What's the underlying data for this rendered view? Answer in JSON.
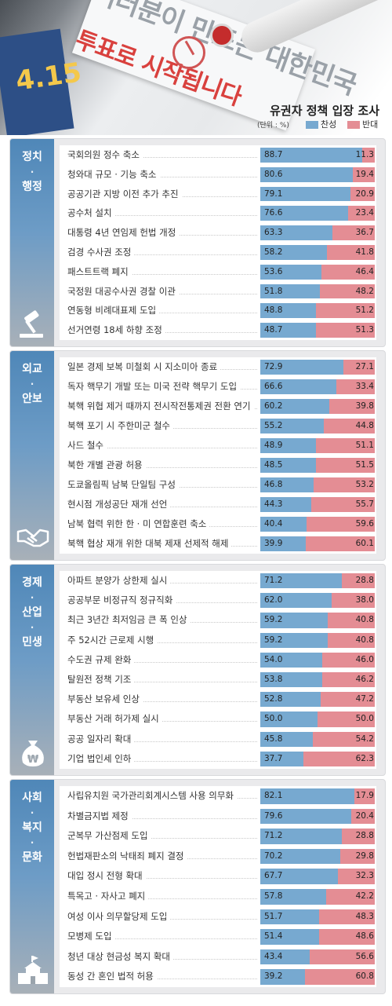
{
  "header": {
    "ballot_text_1": "여러분이 만드는 대한민국",
    "ballot_text_2": "투표로 시작됩니다",
    "poster_date": "4.15"
  },
  "chart_data": {
    "type": "bar",
    "stacked": true,
    "horizontal": true,
    "title": "유권자 정책 입장 조사",
    "unit": "(단위 : %)",
    "xlim": [
      0,
      100
    ],
    "legend": [
      {
        "name": "찬성",
        "color": "#77a9d0"
      },
      {
        "name": "반대",
        "color": "#e48d94"
      }
    ],
    "groups": [
      {
        "label_lines": [
          "정치",
          "·",
          "행정"
        ],
        "color": "#4f87b8",
        "icon": "gavel-icon",
        "items": [
          {
            "label": "국회의원 정수 축소",
            "for": 88.7,
            "against": 11.3
          },
          {
            "label": "청와대 규모 · 기능 축소",
            "for": 80.6,
            "against": 19.4
          },
          {
            "label": "공공기관 지방 이전 추가 추진",
            "for": 79.1,
            "against": 20.9
          },
          {
            "label": "공수처 설치",
            "for": 76.6,
            "against": 23.4
          },
          {
            "label": "대통령 4년 연임제 헌법 개정",
            "for": 63.3,
            "against": 36.7
          },
          {
            "label": "검경 수사권 조정",
            "for": 58.2,
            "against": 41.8
          },
          {
            "label": "패스트트랙 폐지",
            "for": 53.6,
            "against": 46.4
          },
          {
            "label": "국정원 대공수사권 경찰 이관",
            "for": 51.8,
            "against": 48.2
          },
          {
            "label": "연동형 비례대표제 도입",
            "for": 48.8,
            "against": 51.2
          },
          {
            "label": "선거연령 18세 하향 조정",
            "for": 48.7,
            "against": 51.3
          }
        ]
      },
      {
        "label_lines": [
          "외교",
          "·",
          "안보"
        ],
        "color": "#4f87b8",
        "icon": "handshake-icon",
        "items": [
          {
            "label": "일본 경제 보복 미철회 시 지소미아 종료",
            "for": 72.9,
            "against": 27.1
          },
          {
            "label": "독자 핵무기 개발 또는 미국 전략 핵무기 도입",
            "for": 66.6,
            "against": 33.4
          },
          {
            "label": "북핵 위협 제거 때까지 전시작전통제권 전환 연기",
            "for": 60.2,
            "against": 39.8
          },
          {
            "label": "북핵 포기 시 주한미군 철수",
            "for": 55.2,
            "against": 44.8
          },
          {
            "label": "사드 철수",
            "for": 48.9,
            "against": 51.1
          },
          {
            "label": "북한 개별 관광 허용",
            "for": 48.5,
            "against": 51.5
          },
          {
            "label": "도쿄올림픽 남북 단일팀 구성",
            "for": 46.8,
            "against": 53.2
          },
          {
            "label": "현시점 개성공단 재개 선언",
            "for": 44.3,
            "against": 55.7
          },
          {
            "label": "남북 협력 위한 한 · 미 연합훈련 축소",
            "for": 40.4,
            "against": 59.6
          },
          {
            "label": "북핵 협상 재개 위한 대북 제재 선제적 해제",
            "for": 39.9,
            "against": 60.1
          }
        ]
      },
      {
        "label_lines": [
          "경제",
          "·",
          "산업",
          "·",
          "민생"
        ],
        "color": "#4f87b8",
        "icon": "money-bag-icon",
        "items": [
          {
            "label": "아파트 분양가 상한제 실시",
            "for": 71.2,
            "against": 28.8
          },
          {
            "label": "공공부문 비정규직 정규직화",
            "for": 62.0,
            "against": 38.0
          },
          {
            "label": "최근 3년간 최저임금 큰 폭 인상",
            "for": 59.2,
            "against": 40.8
          },
          {
            "label": "주 52시간 근로제 시행",
            "for": 59.2,
            "against": 40.8
          },
          {
            "label": "수도권 규제 완화",
            "for": 54.0,
            "against": 46.0
          },
          {
            "label": "탈원전 정책 기조",
            "for": 53.8,
            "against": 46.2
          },
          {
            "label": "부동산 보유세 인상",
            "for": 52.8,
            "against": 47.2
          },
          {
            "label": "부동산 거래 허가제 실시",
            "for": 50.0,
            "against": 50.0
          },
          {
            "label": "공공 일자리 확대",
            "for": 45.8,
            "against": 54.2
          },
          {
            "label": "기업 법인세 인하",
            "for": 37.7,
            "against": 62.3
          }
        ]
      },
      {
        "label_lines": [
          "사회",
          "·",
          "복지",
          "·",
          "문화"
        ],
        "color": "#4f87b8",
        "icon": "school-building-icon",
        "items": [
          {
            "label": "사립유치원 국가관리회계시스템 사용 의무화",
            "for": 82.1,
            "against": 17.9
          },
          {
            "label": "차별금지법 제정",
            "for": 79.6,
            "against": 20.4
          },
          {
            "label": "군복무 가산점제 도입",
            "for": 71.2,
            "against": 28.8
          },
          {
            "label": "헌법재판소의 낙태죄 폐지 결정",
            "for": 70.2,
            "against": 29.8
          },
          {
            "label": "대입 정시 전형 확대",
            "for": 67.7,
            "against": 32.3
          },
          {
            "label": "특목고 · 자사고 폐지",
            "for": 57.8,
            "against": 42.2
          },
          {
            "label": "여성 이사 의무할당제 도입",
            "for": 51.7,
            "against": 48.3
          },
          {
            "label": "모병제 도입",
            "for": 51.4,
            "against": 48.6
          },
          {
            "label": "청년 대상 현금성 복지 확대",
            "for": 43.4,
            "against": 56.6
          },
          {
            "label": "동성 간 혼인 법적 허용",
            "for": 39.2,
            "against": 60.8
          }
        ]
      }
    ]
  }
}
